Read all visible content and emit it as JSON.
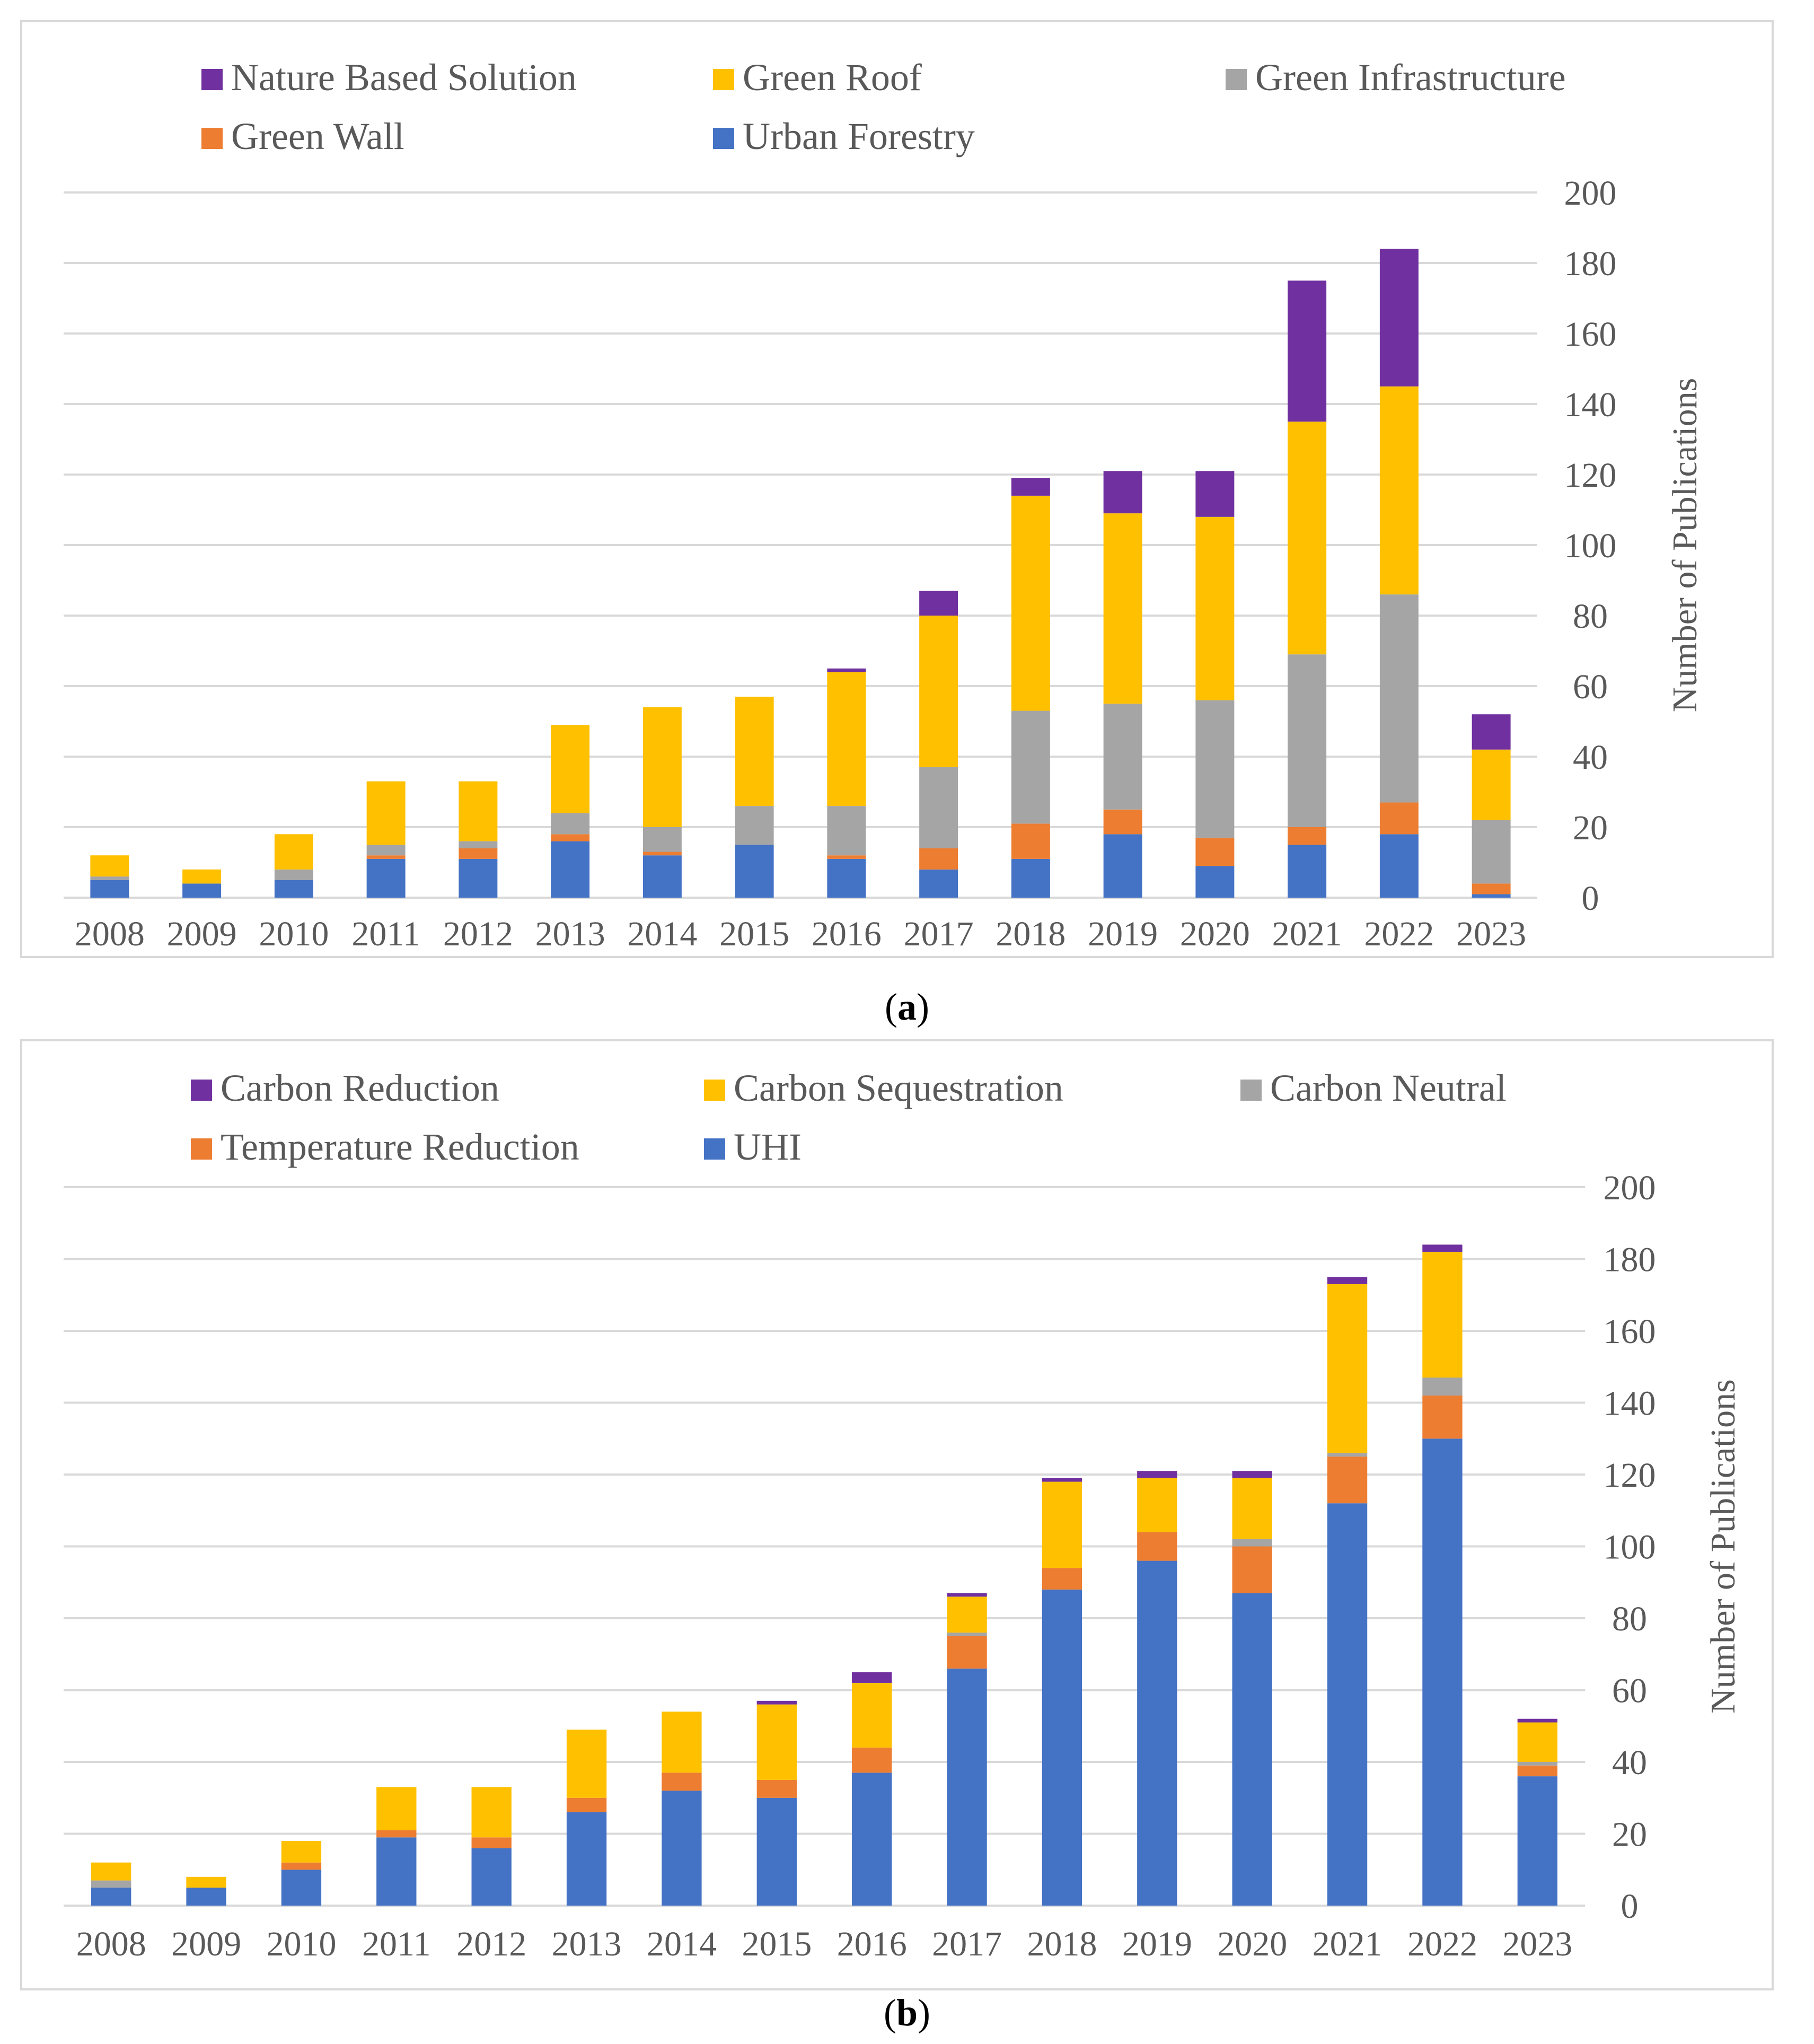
{
  "colors": {
    "purple": "#7030a0",
    "yellow": "#ffc000",
    "gray": "#a5a5a5",
    "orange": "#ed7d31",
    "blue": "#4472c4"
  },
  "chart_data": [
    {
      "type": "bar",
      "stacked": true,
      "caption_letter": "a",
      "ylabel": "Number of Publications",
      "ylim": [
        0,
        200
      ],
      "yticks": [
        "0",
        "20",
        "40",
        "60",
        "80",
        "100",
        "120",
        "140",
        "160",
        "180",
        "200"
      ],
      "categories": [
        "2008",
        "2009",
        "2010",
        "2011",
        "2012",
        "2013",
        "2014",
        "2015",
        "2016",
        "2017",
        "2018",
        "2019",
        "2020",
        "2021",
        "2022",
        "2023"
      ],
      "legend_placement": "top",
      "series": [
        {
          "name": "Urban Forestry",
          "color": "#4472c4",
          "values": [
            5,
            4,
            5,
            11,
            11,
            16,
            12,
            15,
            11,
            8,
            11,
            18,
            9,
            15,
            18,
            1
          ]
        },
        {
          "name": "Green Wall",
          "color": "#ed7d31",
          "values": [
            0,
            0,
            0,
            1,
            3,
            2,
            1,
            0,
            1,
            6,
            10,
            7,
            8,
            5,
            9,
            3
          ]
        },
        {
          "name": "Green Infrastructure",
          "color": "#a5a5a5",
          "values": [
            1,
            0,
            3,
            3,
            2,
            6,
            7,
            11,
            14,
            23,
            32,
            30,
            39,
            49,
            59,
            18
          ]
        },
        {
          "name": "Green Roof",
          "color": "#ffc000",
          "values": [
            6,
            4,
            10,
            18,
            17,
            25,
            34,
            31,
            38,
            43,
            61,
            54,
            52,
            66,
            59,
            20
          ]
        },
        {
          "name": "Nature Based Solution",
          "color": "#7030a0",
          "values": [
            0,
            0,
            0,
            0,
            0,
            0,
            0,
            0,
            1,
            7,
            5,
            12,
            13,
            40,
            39,
            10
          ]
        }
      ],
      "legend_order": [
        "Nature Based Solution",
        "Green Roof",
        "Green Infrastructure",
        "Green Wall",
        "Urban Forestry"
      ]
    },
    {
      "type": "bar",
      "stacked": true,
      "caption_letter": "b",
      "ylabel": "Number of Publications",
      "ylim": [
        0,
        200
      ],
      "yticks": [
        "0",
        "20",
        "40",
        "60",
        "80",
        "100",
        "120",
        "140",
        "160",
        "180",
        "200"
      ],
      "categories": [
        "2008",
        "2009",
        "2010",
        "2011",
        "2012",
        "2013",
        "2014",
        "2015",
        "2016",
        "2017",
        "2018",
        "2019",
        "2020",
        "2021",
        "2022",
        "2023"
      ],
      "legend_placement": "top",
      "series": [
        {
          "name": "UHI",
          "color": "#4472c4",
          "values": [
            5,
            5,
            10,
            19,
            16,
            26,
            32,
            30,
            37,
            66,
            88,
            96,
            87,
            112,
            130,
            36
          ]
        },
        {
          "name": "Temperature Reduction",
          "color": "#ed7d31",
          "values": [
            0,
            0,
            2,
            2,
            3,
            4,
            5,
            5,
            7,
            9,
            6,
            8,
            13,
            13,
            12,
            3
          ]
        },
        {
          "name": "Carbon Neutral",
          "color": "#a5a5a5",
          "values": [
            2,
            0,
            0,
            0,
            0,
            0,
            0,
            0,
            0,
            1,
            0,
            0,
            2,
            1,
            5,
            1
          ]
        },
        {
          "name": "Carbon Sequestration",
          "color": "#ffc000",
          "values": [
            5,
            3,
            6,
            12,
            14,
            19,
            17,
            21,
            18,
            10,
            24,
            15,
            17,
            47,
            35,
            11
          ]
        },
        {
          "name": "Carbon Reduction",
          "color": "#7030a0",
          "values": [
            0,
            0,
            0,
            0,
            0,
            0,
            0,
            1,
            3,
            1,
            1,
            2,
            2,
            2,
            2,
            1
          ]
        }
      ],
      "legend_order": [
        "Carbon Reduction",
        "Carbon Sequestration",
        "Carbon Neutral",
        "Temperature Reduction",
        "UHI"
      ]
    }
  ]
}
